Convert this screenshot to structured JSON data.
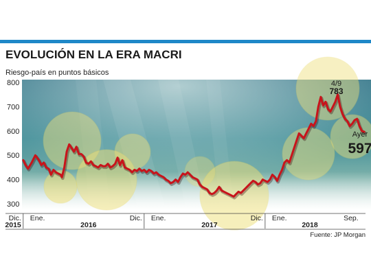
{
  "chart_data": {
    "type": "line",
    "title": "EVOLUCIÓN EN LA ERA MACRI",
    "subtitle": "Riesgo-país en puntos básicos",
    "ylim": [
      300,
      800
    ],
    "yticks": [
      800,
      700,
      600,
      500,
      400,
      300
    ],
    "xlim": [
      2015.95,
      2018.79
    ],
    "month_labels": [
      {
        "text": "Dic.",
        "x": 2015.96
      },
      {
        "text": "Ene.",
        "x": 2016.0
      },
      {
        "text": "Dic.",
        "x": 2016.96
      },
      {
        "text": "Ene.",
        "x": 2017.0
      },
      {
        "text": "Dic.",
        "x": 2017.96
      },
      {
        "text": "Ene.",
        "x": 2018.0
      },
      {
        "text": "Sep.",
        "x": 2018.67
      }
    ],
    "year_labels": [
      {
        "text": "2015",
        "x": 2015.96
      },
      {
        "text": "2016",
        "x": 2016.5
      },
      {
        "text": "2017",
        "x": 2017.5
      },
      {
        "text": "2018",
        "x": 2018.33
      }
    ],
    "series": [
      {
        "color": "#c8141b",
        "points": [
          [
            2015.96,
            480
          ],
          [
            2015.98,
            460
          ],
          [
            2016.0,
            445
          ],
          [
            2016.03,
            470
          ],
          [
            2016.06,
            500
          ],
          [
            2016.09,
            480
          ],
          [
            2016.11,
            460
          ],
          [
            2016.13,
            470
          ],
          [
            2016.15,
            450
          ],
          [
            2016.17,
            445
          ],
          [
            2016.19,
            420
          ],
          [
            2016.21,
            440
          ],
          [
            2016.23,
            430
          ],
          [
            2016.25,
            425
          ],
          [
            2016.27,
            420
          ],
          [
            2016.28,
            410
          ],
          [
            2016.3,
            450
          ],
          [
            2016.32,
            515
          ],
          [
            2016.34,
            545
          ],
          [
            2016.36,
            530
          ],
          [
            2016.38,
            515
          ],
          [
            2016.4,
            535
          ],
          [
            2016.42,
            505
          ],
          [
            2016.44,
            505
          ],
          [
            2016.46,
            495
          ],
          [
            2016.48,
            470
          ],
          [
            2016.5,
            465
          ],
          [
            2016.52,
            475
          ],
          [
            2016.54,
            460
          ],
          [
            2016.56,
            455
          ],
          [
            2016.58,
            450
          ],
          [
            2016.6,
            460
          ],
          [
            2016.62,
            455
          ],
          [
            2016.64,
            455
          ],
          [
            2016.66,
            465
          ],
          [
            2016.68,
            450
          ],
          [
            2016.7,
            455
          ],
          [
            2016.72,
            465
          ],
          [
            2016.74,
            490
          ],
          [
            2016.76,
            460
          ],
          [
            2016.78,
            480
          ],
          [
            2016.8,
            450
          ],
          [
            2016.82,
            445
          ],
          [
            2016.84,
            440
          ],
          [
            2016.86,
            430
          ],
          [
            2016.88,
            440
          ],
          [
            2016.9,
            435
          ],
          [
            2016.92,
            445
          ],
          [
            2016.94,
            435
          ],
          [
            2016.96,
            440
          ],
          [
            2016.98,
            430
          ],
          [
            2017.0,
            440
          ],
          [
            2017.02,
            435
          ],
          [
            2017.04,
            425
          ],
          [
            2017.06,
            430
          ],
          [
            2017.08,
            420
          ],
          [
            2017.1,
            415
          ],
          [
            2017.12,
            410
          ],
          [
            2017.14,
            400
          ],
          [
            2017.16,
            395
          ],
          [
            2017.18,
            385
          ],
          [
            2017.2,
            390
          ],
          [
            2017.22,
            400
          ],
          [
            2017.24,
            390
          ],
          [
            2017.26,
            410
          ],
          [
            2017.28,
            425
          ],
          [
            2017.3,
            420
          ],
          [
            2017.32,
            430
          ],
          [
            2017.34,
            420
          ],
          [
            2017.36,
            410
          ],
          [
            2017.38,
            405
          ],
          [
            2017.4,
            400
          ],
          [
            2017.42,
            380
          ],
          [
            2017.44,
            370
          ],
          [
            2017.46,
            365
          ],
          [
            2017.48,
            360
          ],
          [
            2017.5,
            345
          ],
          [
            2017.52,
            340
          ],
          [
            2017.54,
            345
          ],
          [
            2017.56,
            355
          ],
          [
            2017.58,
            370
          ],
          [
            2017.6,
            355
          ],
          [
            2017.62,
            350
          ],
          [
            2017.64,
            345
          ],
          [
            2017.66,
            340
          ],
          [
            2017.68,
            335
          ],
          [
            2017.7,
            330
          ],
          [
            2017.72,
            340
          ],
          [
            2017.74,
            350
          ],
          [
            2017.76,
            345
          ],
          [
            2017.78,
            355
          ],
          [
            2017.8,
            365
          ],
          [
            2017.82,
            375
          ],
          [
            2017.84,
            385
          ],
          [
            2017.86,
            395
          ],
          [
            2017.88,
            390
          ],
          [
            2017.9,
            380
          ],
          [
            2017.92,
            385
          ],
          [
            2017.94,
            400
          ],
          [
            2017.96,
            395
          ],
          [
            2017.98,
            390
          ],
          [
            2018.0,
            400
          ],
          [
            2018.02,
            420
          ],
          [
            2018.04,
            410
          ],
          [
            2018.06,
            395
          ],
          [
            2018.08,
            420
          ],
          [
            2018.1,
            440
          ],
          [
            2018.12,
            470
          ],
          [
            2018.14,
            480
          ],
          [
            2018.16,
            470
          ],
          [
            2018.18,
            500
          ],
          [
            2018.2,
            530
          ],
          [
            2018.22,
            560
          ],
          [
            2018.24,
            590
          ],
          [
            2018.26,
            580
          ],
          [
            2018.28,
            570
          ],
          [
            2018.3,
            590
          ],
          [
            2018.32,
            610
          ],
          [
            2018.34,
            630
          ],
          [
            2018.36,
            620
          ],
          [
            2018.38,
            640
          ],
          [
            2018.4,
            700
          ],
          [
            2018.42,
            740
          ],
          [
            2018.44,
            705
          ],
          [
            2018.46,
            720
          ],
          [
            2018.48,
            690
          ],
          [
            2018.5,
            680
          ],
          [
            2018.52,
            700
          ],
          [
            2018.54,
            720
          ],
          [
            2018.56,
            750
          ],
          [
            2018.58,
            700
          ],
          [
            2018.6,
            670
          ],
          [
            2018.62,
            650
          ],
          [
            2018.64,
            640
          ],
          [
            2018.66,
            620
          ],
          [
            2018.68,
            630
          ],
          [
            2018.7,
            645
          ],
          [
            2018.72,
            650
          ],
          [
            2018.74,
            620
          ],
          [
            2018.76,
            600
          ],
          [
            2018.78,
            597
          ]
        ]
      }
    ],
    "annotations": [
      {
        "date_label": "4/9",
        "value_label": "783",
        "x": 2018.56,
        "y": 783
      },
      {
        "date_label": "Ayer",
        "value_label": "597",
        "x": 2018.78,
        "y": 597
      }
    ],
    "source": "Fuente: JP Morgan"
  },
  "colors": {
    "accent_bar": "#1e88c8",
    "line": "#c8141b",
    "bubble": "#efe07a",
    "water_top": "#2f7f8a",
    "water_bottom": "#6aa8a2"
  }
}
